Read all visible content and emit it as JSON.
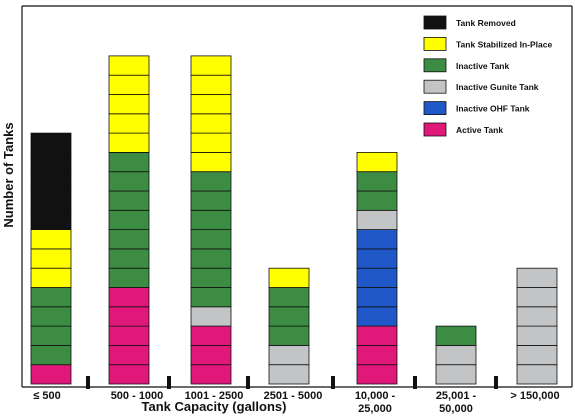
{
  "chart_data": {
    "type": "bar",
    "stacked": true,
    "xlabel": "Tank Capacity (gallons)",
    "ylabel": "Number of Tanks",
    "categories": [
      [
        "≤ 500"
      ],
      [
        "500 - 1000"
      ],
      [
        "1001 - 2500"
      ],
      [
        "2501 - 5000"
      ],
      [
        "10,000 -",
        "25,000"
      ],
      [
        "25,001 -",
        "50,000"
      ],
      [
        "> 150,000"
      ]
    ],
    "series": [
      {
        "name": "Active Tank",
        "color": "#e0187a",
        "values": [
          1,
          5,
          3,
          0,
          3,
          0,
          0
        ]
      },
      {
        "name": "Inactive Gunite Tank",
        "color": "#c2c4c6",
        "values": [
          0,
          0,
          1,
          2,
          0,
          2,
          6
        ]
      },
      {
        "name": "Inactive Tank",
        "color": "#3c8c44",
        "values": [
          4,
          7,
          7,
          3,
          0,
          1,
          0
        ]
      },
      {
        "name": "Inactive OHF Tank",
        "color": "#2058c8",
        "values": [
          0,
          0,
          0,
          0,
          5,
          0,
          0
        ]
      },
      {
        "name": "Inactive Gunite Tank",
        "color": "#c2c4c6",
        "values": [
          0,
          0,
          0,
          0,
          1,
          0,
          0
        ]
      },
      {
        "name": "Inactive Tank",
        "color": "#3c8c44",
        "values": [
          0,
          0,
          0,
          0,
          2,
          0,
          0
        ]
      },
      {
        "name": "Tank Stabilized In-Place",
        "color": "#ffff00",
        "values": [
          3,
          5,
          6,
          1,
          1,
          0,
          0
        ]
      },
      {
        "name": "Tank Removed",
        "color": "#111111",
        "values": [
          5,
          0,
          0,
          0,
          0,
          0,
          0
        ]
      }
    ],
    "legend": [
      {
        "name": "Tank Removed",
        "color": "#111111"
      },
      {
        "name": "Tank Stabilized In-Place",
        "color": "#ffff00"
      },
      {
        "name": "Inactive Tank",
        "color": "#3c8c44"
      },
      {
        "name": "Inactive Gunite Tank",
        "color": "#c2c4c6"
      },
      {
        "name": "Inactive OHF Tank",
        "color": "#2058c8"
      },
      {
        "name": "Active Tank",
        "color": "#e0187a"
      }
    ],
    "legend_position": "top-right",
    "axis_breaks": true,
    "grid": false,
    "ylim": [
      0,
      17
    ]
  }
}
